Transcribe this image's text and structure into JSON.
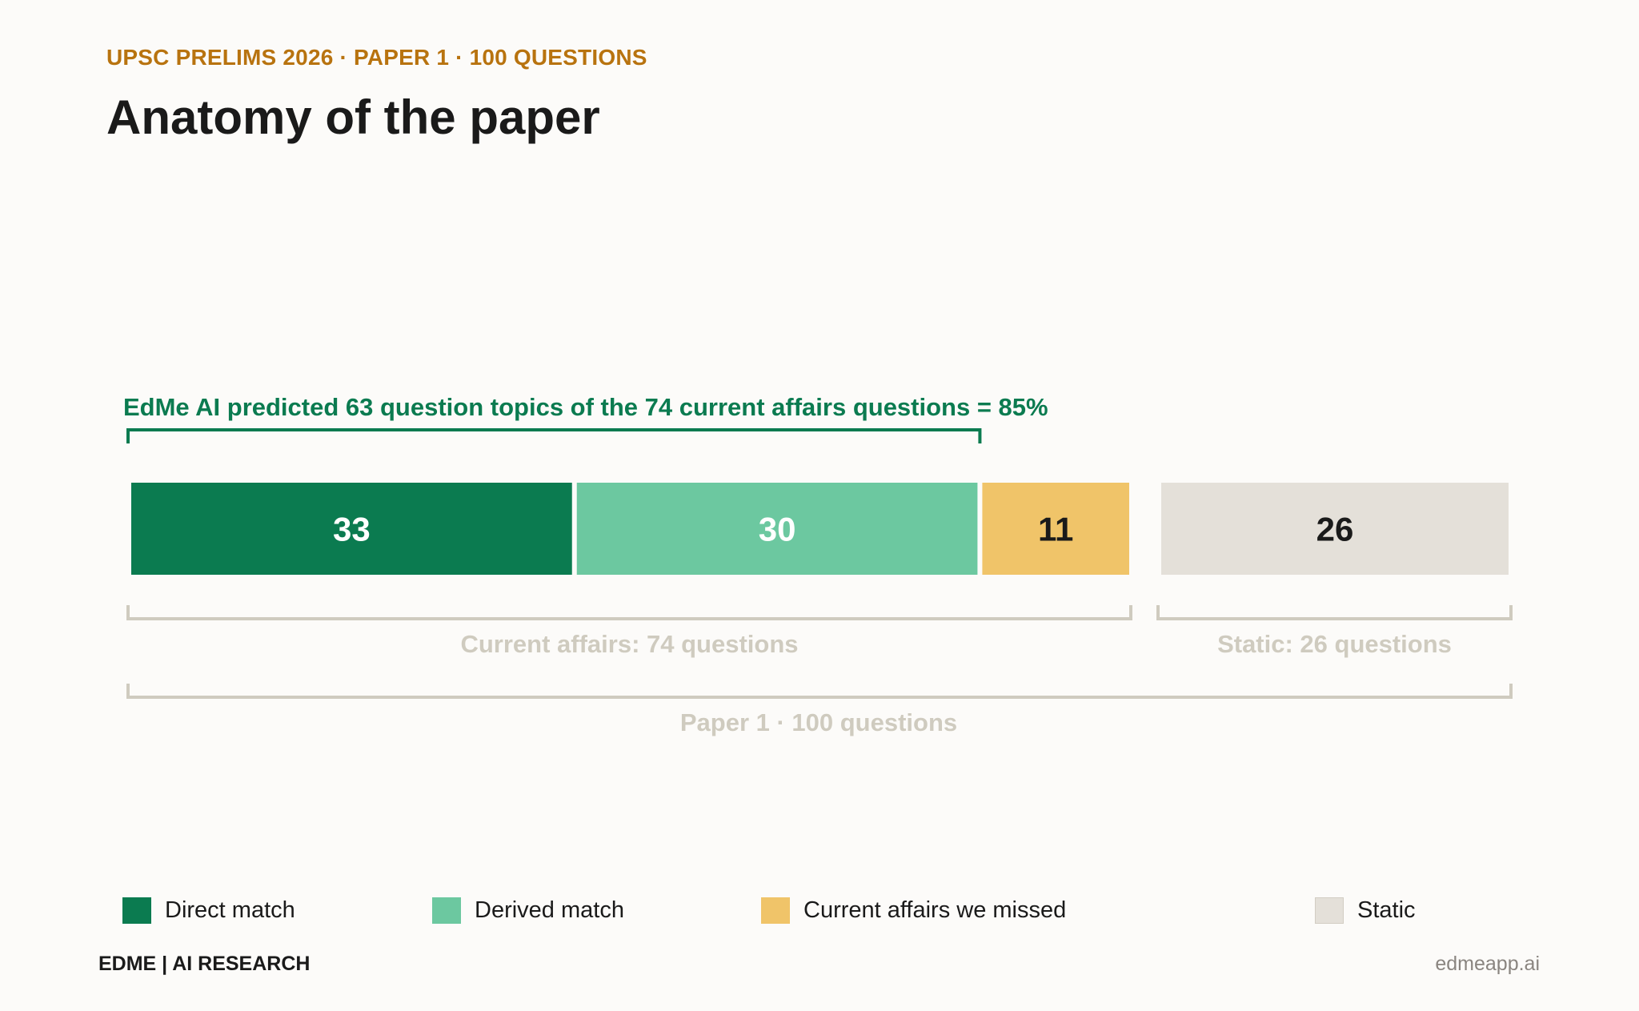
{
  "header": {
    "eyebrow": "UPSC PRELIMS 2026 · PAPER 1 · 100 QUESTIONS",
    "title": "Anatomy of the paper"
  },
  "chart_data": {
    "type": "bar",
    "orientation": "horizontal-stacked",
    "total": 100,
    "segments": [
      {
        "label": "Direct match",
        "value": 33,
        "color": "#0b7b50",
        "text_color": "#ffffff"
      },
      {
        "label": "Derived match",
        "value": 30,
        "color": "#6cc8a0",
        "text_color": "#ffffff"
      },
      {
        "label": "Current affairs we missed",
        "value": 11,
        "color": "#f0c469",
        "text_color": "#1a1a1a"
      },
      {
        "label": "Static",
        "value": 26,
        "color": "#e4e0d9",
        "text_color": "#1a1a1a"
      }
    ],
    "annotations": {
      "prediction": {
        "text": "EdMe AI predicted 63 question topics of the 74 current affairs questions  =  85%",
        "color": "#0b7b50",
        "spans_values": 63
      },
      "current_affairs": {
        "text": "Current affairs:  74 questions",
        "spans_values": 74
      },
      "static": {
        "text": "Static:  26 questions",
        "spans_values": 26
      },
      "paper": {
        "text": "Paper 1  ·  100 questions",
        "spans_values": 100
      }
    },
    "bracket_color": "#cfcbbf",
    "legend_placement": "bottom"
  },
  "footer": {
    "brand": "EDME  |  AI RESEARCH",
    "url": "edmeapp.ai"
  }
}
